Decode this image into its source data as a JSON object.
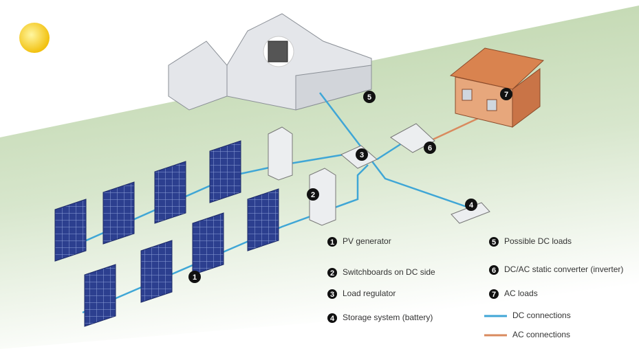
{
  "callouts": [
    "1",
    "2",
    "3",
    "4",
    "5",
    "6",
    "7"
  ],
  "legend": {
    "items": [
      {
        "number": "1",
        "label": "PV generator"
      },
      {
        "number": "2",
        "label": "Switchboards on DC side"
      },
      {
        "number": "3",
        "label": "Load regulator"
      },
      {
        "number": "4",
        "label": "Storage system (battery)"
      },
      {
        "number": "5",
        "label": "Possible DC loads"
      },
      {
        "number": "6",
        "label": "DC/AC static converter (inverter)"
      },
      {
        "number": "7",
        "label": "AC loads"
      }
    ],
    "lines": [
      {
        "label": "DC connections",
        "color": "#3fa6d6"
      },
      {
        "label": "AC connections",
        "color": "#d98a5e"
      }
    ]
  }
}
